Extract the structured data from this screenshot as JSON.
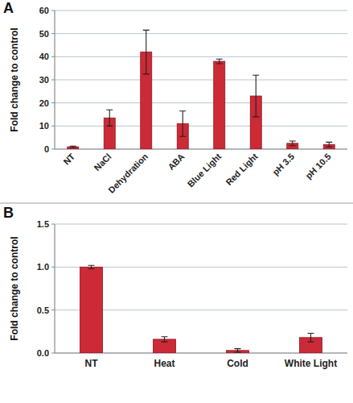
{
  "chart_data": [
    {
      "type": "bar",
      "title": "A",
      "y_label": "Fold change to control",
      "categories": [
        "NT",
        "NaCl",
        "Dehydration",
        "ABA",
        "Blue Light",
        "Red Light",
        "pH 3.5",
        "pH 10.5"
      ],
      "values": [
        1,
        13.5,
        42,
        11,
        38,
        23,
        2.5,
        2
      ],
      "errors": [
        0.3,
        3.5,
        9.5,
        5.5,
        1,
        9,
        1,
        1
      ],
      "color": "#cc2a36",
      "ylim": [
        0,
        60
      ],
      "yticks": [
        0,
        10,
        20,
        30,
        40,
        50,
        60
      ],
      "grid": true
    },
    {
      "type": "bar",
      "title": "B",
      "y_label": "Fold change to control",
      "categories": [
        "NT",
        "Heat",
        "Cold",
        "White Light"
      ],
      "values": [
        1.0,
        0.16,
        0.03,
        0.18
      ],
      "errors": [
        0.02,
        0.03,
        0.02,
        0.05
      ],
      "color": "#cc2a36",
      "ylim": [
        0,
        1.5
      ],
      "yticks": [
        {
          "value": 0,
          "label": "0.0"
        },
        0.5,
        {
          "value": 1,
          "label": "1.0"
        },
        1.5
      ],
      "grid": true
    }
  ]
}
